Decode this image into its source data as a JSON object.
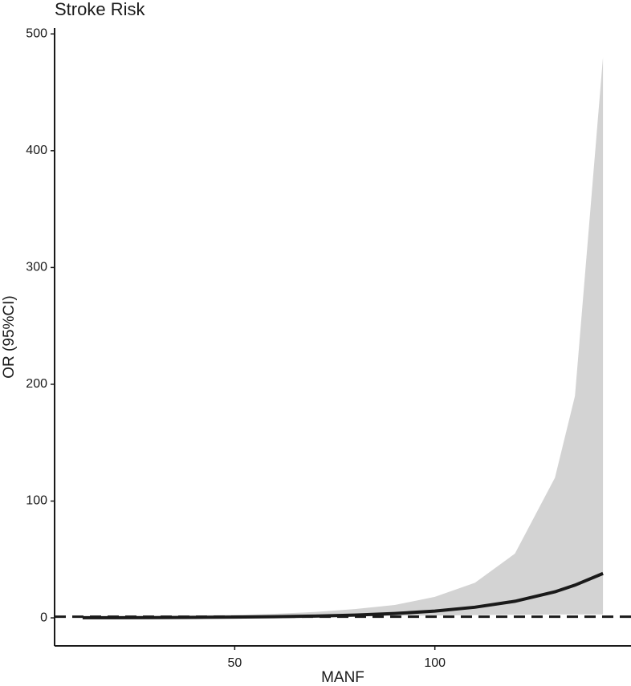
{
  "chart_data": {
    "type": "line",
    "title": "Stroke Risk",
    "x_label": "MANF",
    "y_label": "OR (95%CI)",
    "x": [
      12,
      20,
      30,
      40,
      50,
      60,
      70,
      80,
      90,
      100,
      110,
      120,
      130,
      135,
      142
    ],
    "values": [
      0.11,
      0.16,
      0.25,
      0.39,
      0.61,
      0.96,
      1.5,
      2.35,
      3.7,
      5.8,
      9.1,
      14.2,
      22.3,
      28,
      38
    ],
    "lower": [
      0.05,
      0.08,
      0.12,
      0.2,
      0.3,
      0.5,
      0.8,
      1.2,
      1.6,
      2,
      2.4,
      2.7,
      2.9,
      3,
      3
    ],
    "upper": [
      1,
      1.2,
      1.5,
      2,
      2.5,
      3.5,
      5,
      7.5,
      11,
      18,
      30,
      55,
      120,
      190,
      480
    ],
    "line_color": "#1a1a1a",
    "band_color": "#d3d3d3",
    "reference": 1,
    "xlim": [
      5,
      149
    ],
    "xticks": [
      50,
      100
    ],
    "ylim": [
      -24,
      505
    ],
    "yticks": [
      0,
      100,
      200,
      300,
      400,
      500
    ]
  }
}
